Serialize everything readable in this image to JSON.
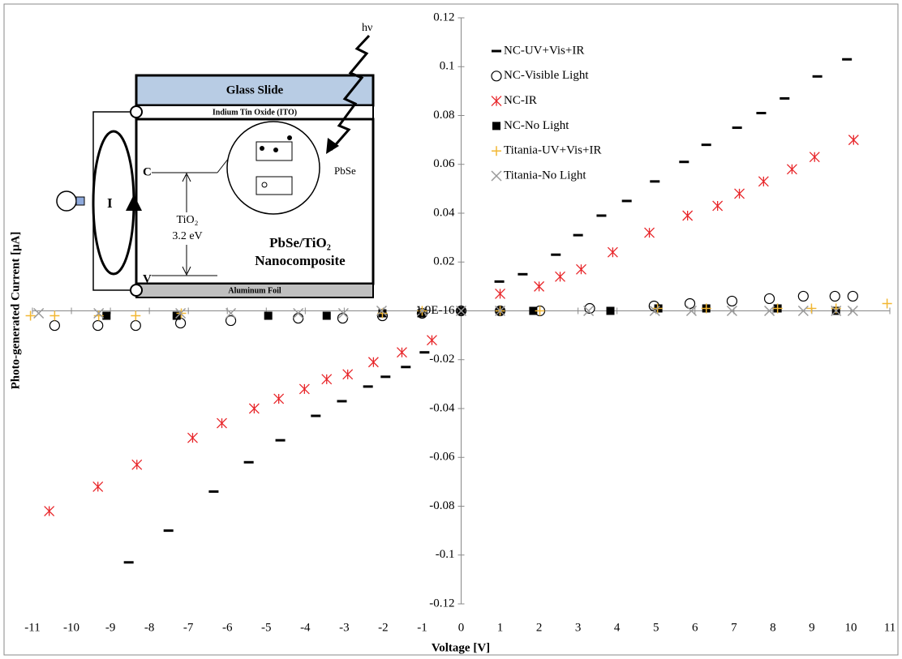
{
  "chart_data": {
    "type": "scatter",
    "x_label": "Voltage [V]",
    "y_label": "Photo-generated Current [μA]",
    "xlim": [
      -11,
      11
    ],
    "ylim": [
      -0.12,
      0.12
    ],
    "xticks": [
      -11,
      -10,
      -9,
      -8,
      -7,
      -6,
      -5,
      -4,
      -3,
      -2,
      -1,
      0,
      1,
      2,
      3,
      4,
      5,
      6,
      7,
      8,
      9,
      10,
      11
    ],
    "yticks": [
      -0.12,
      -0.1,
      -0.08,
      -0.06,
      -0.04,
      -0.02,
      {
        "value": 0,
        "label": "1.9E-16"
      },
      0.02,
      0.04,
      0.06,
      0.08,
      0.1,
      0.12
    ],
    "legend": "upper right",
    "series": [
      {
        "name": "NC-UV+Vis+IR",
        "color": "#000000",
        "marker": "dash",
        "x": [
          -8.53,
          -7.51,
          -6.35,
          -5.45,
          -4.64,
          -3.73,
          -3.06,
          -2.39,
          -1.94,
          -1.42,
          -0.94,
          0.98,
          1.58,
          2.43,
          3.0,
          3.6,
          4.25,
          4.97,
          5.72,
          6.29,
          7.08,
          7.7,
          8.3,
          9.14,
          9.9
        ],
        "values": [
          -0.103,
          -0.09,
          -0.074,
          -0.062,
          -0.053,
          -0.043,
          -0.037,
          -0.031,
          -0.027,
          -0.023,
          -0.017,
          0.012,
          0.015,
          0.023,
          0.031,
          0.039,
          0.045,
          0.053,
          0.061,
          0.068,
          0.075,
          0.081,
          0.087,
          0.096,
          0.103
        ]
      },
      {
        "name": "NC-Visible Light",
        "color": "#000000",
        "marker": "circle",
        "x": [
          -10.43,
          -9.32,
          -8.35,
          -7.2,
          -5.91,
          -4.18,
          -3.04,
          -2.02,
          -1.0,
          0,
          1.0,
          2.02,
          3.3,
          4.95,
          5.87,
          6.95,
          7.91,
          8.78,
          9.59,
          10.05
        ],
        "values": [
          -0.006,
          -0.006,
          -0.006,
          -0.005,
          -0.004,
          -0.003,
          -0.003,
          -0.002,
          -0.001,
          0,
          0,
          0,
          0.001,
          0.002,
          0.003,
          0.004,
          0.005,
          0.006,
          0.006,
          0.006
        ]
      },
      {
        "name": "NC-IR",
        "color": "#e8262a",
        "marker": "asterisk",
        "x": [
          -10.57,
          -9.32,
          -8.32,
          -6.89,
          -6.14,
          -5.31,
          -4.68,
          -4.02,
          -3.45,
          -2.91,
          -2.25,
          -1.52,
          -0.75,
          1.0,
          2.0,
          2.54,
          3.08,
          3.89,
          4.83,
          5.81,
          6.58,
          7.14,
          7.76,
          8.49,
          9.07,
          10.07
        ],
        "values": [
          -0.082,
          -0.072,
          -0.063,
          -0.052,
          -0.046,
          -0.04,
          -0.036,
          -0.032,
          -0.028,
          -0.026,
          -0.021,
          -0.017,
          -0.012,
          0.007,
          0.01,
          0.014,
          0.017,
          0.024,
          0.032,
          0.039,
          0.043,
          0.048,
          0.053,
          0.058,
          0.063,
          0.07
        ]
      },
      {
        "name": "NC-No Light",
        "color": "#000000",
        "marker": "square",
        "x": [
          -9.1,
          -7.3,
          -4.95,
          -3.45,
          -2.02,
          -1.02,
          0,
          1.0,
          1.85,
          3.83,
          5.06,
          6.29,
          8.12,
          9.62
        ],
        "values": [
          -0.002,
          -0.002,
          -0.002,
          -0.002,
          -0.001,
          -0.001,
          0,
          0,
          0,
          0,
          0.001,
          0.001,
          0.001,
          0
        ]
      },
      {
        "name": "Titania-UV+Vis+IR",
        "color": "#f2b733",
        "marker": "plus",
        "x": [
          -11.05,
          -10.43,
          -9.3,
          -8.35,
          -7.18,
          -2.02,
          -1.0,
          1.0,
          2.02,
          5.04,
          6.29,
          8.12,
          8.99,
          9.62,
          10.93
        ],
        "values": [
          -0.002,
          -0.002,
          -0.002,
          -0.002,
          -0.001,
          -0.001,
          0,
          0,
          0,
          0.001,
          0.001,
          0.001,
          0.001,
          0.001,
          0.003
        ]
      },
      {
        "name": "Titania-No Light",
        "color": "#999999",
        "marker": "x",
        "x": [
          -10.84,
          -9.3,
          -7.2,
          -5.91,
          -4.18,
          -3.02,
          -2.04,
          -1.0,
          0,
          1.0,
          3.27,
          4.97,
          5.91,
          6.95,
          7.91,
          8.78,
          9.62,
          10.05
        ],
        "values": [
          -0.001,
          -0.001,
          -0.001,
          -0.001,
          -0.001,
          -0.001,
          0,
          0,
          0,
          0,
          0,
          0,
          0,
          0,
          0,
          0,
          0,
          0
        ]
      }
    ],
    "inset": {
      "light": "hν",
      "glass": "Glass Slide",
      "ito": "Indium Tin Oxide (ITO)",
      "conduction": "C",
      "pbse": "PbSe",
      "current": "I",
      "tio2": "TiO₂",
      "gap": "3.2 eV",
      "composite": "PbSe/TiO₂",
      "composite2": "Nanocomposite",
      "valence": "V",
      "foil": "Aluminum Foil"
    }
  }
}
